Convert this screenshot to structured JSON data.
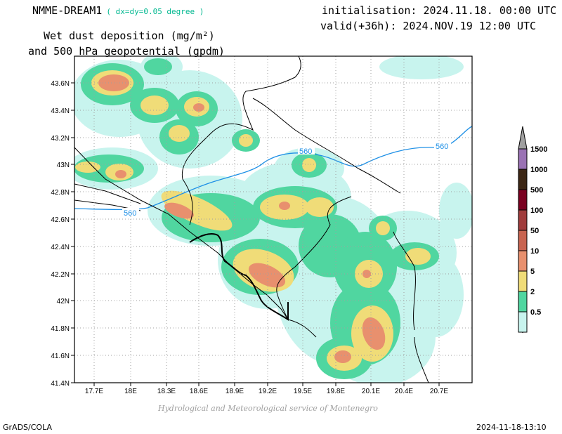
{
  "header": {
    "model": "NMME-DREAM1",
    "resolution": "( dx=dy=0.05 degree )",
    "init": "initialisation: 2024.11.18. 00:00 UTC",
    "valid": "valid(+36h): 2024.NOV.19 12:00 UTC",
    "variable_line1": "Wet dust deposition (mg/m²)",
    "variable_line2": "and 500 hPa geopotential (gpdm)"
  },
  "map": {
    "lon_ticks": [
      "17.7E",
      "18E",
      "18.3E",
      "18.6E",
      "18.9E",
      "19.2E",
      "19.5E",
      "19.8E",
      "20.1E",
      "20.4E",
      "20.7E"
    ],
    "lat_ticks": [
      "43.6N",
      "43.4N",
      "43.2N",
      "43N",
      "42.8N",
      "42.6N",
      "42.4N",
      "42.2N",
      "42N",
      "41.8N",
      "41.6N",
      "41.4N"
    ],
    "contour_label": "560",
    "contour_color": "#1e90e6"
  },
  "legend": {
    "labels": [
      "1500",
      "1000",
      "500",
      "100",
      "50",
      "10",
      "5",
      "2",
      "0.5"
    ],
    "colors": [
      "#9a72b4",
      "#3c2614",
      "#7a0020",
      "#a03c3c",
      "#c86450",
      "#e8906e",
      "#f0dc78",
      "#50d6a0",
      "#c8f4ee"
    ]
  },
  "footer": {
    "credit": "Hydrological and Meteorological service of Montenegro",
    "software": "GrADS/COLA",
    "timestamp": "2024-11-18-13:10"
  }
}
